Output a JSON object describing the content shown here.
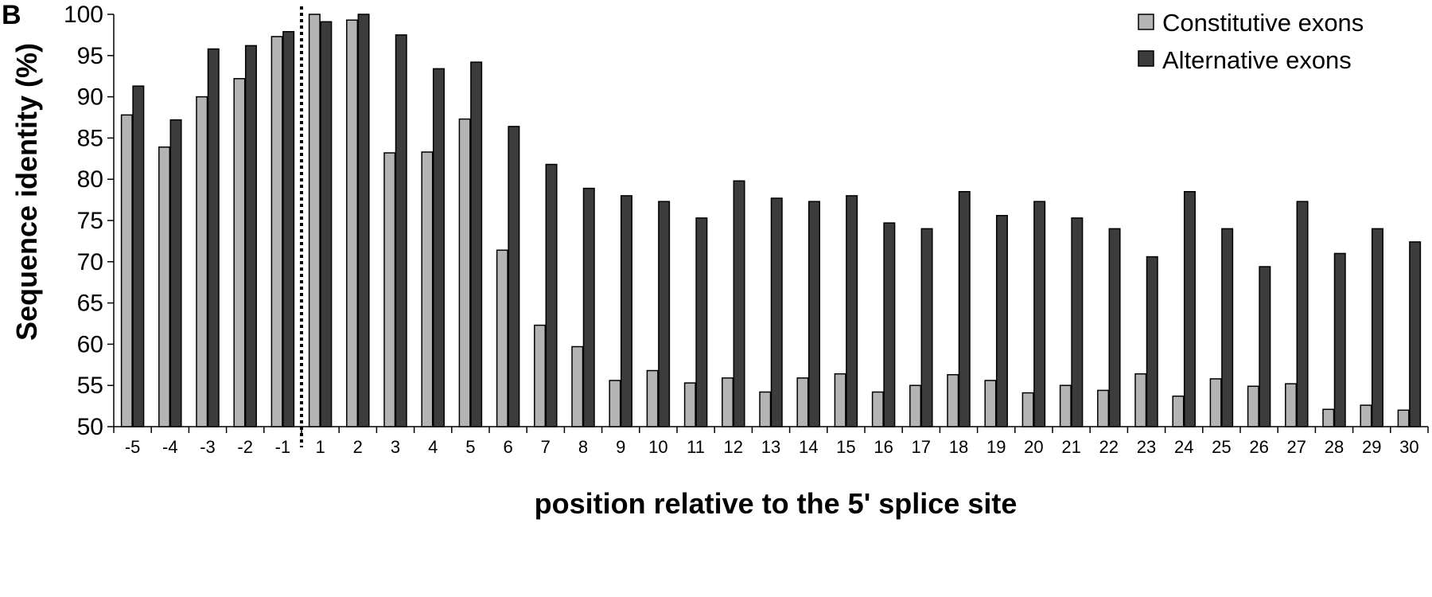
{
  "panel_label": "B",
  "chart_data": {
    "type": "bar",
    "xlabel": "position relative to the 5' splice site",
    "ylabel": "Sequence identity (%)",
    "ylim": [
      50,
      100
    ],
    "yticks": [
      50,
      55,
      60,
      65,
      70,
      75,
      80,
      85,
      90,
      95,
      100
    ],
    "grid": false,
    "legend_position": "top-right",
    "categories": [
      "-5",
      "-4",
      "-3",
      "-2",
      "-1",
      "1",
      "2",
      "3",
      "4",
      "5",
      "6",
      "7",
      "8",
      "9",
      "10",
      "11",
      "12",
      "13",
      "14",
      "15",
      "16",
      "17",
      "18",
      "19",
      "20",
      "21",
      "22",
      "23",
      "24",
      "25",
      "26",
      "27",
      "28",
      "29",
      "30"
    ],
    "series": [
      {
        "name": "Constitutive exons",
        "color": "#b4b4b4",
        "values": [
          87.8,
          83.9,
          90.0,
          92.2,
          97.3,
          100.0,
          99.3,
          83.2,
          83.3,
          87.3,
          71.4,
          62.3,
          59.7,
          55.6,
          56.8,
          55.3,
          55.9,
          54.2,
          55.9,
          56.4,
          54.2,
          55.0,
          56.3,
          55.6,
          54.1,
          55.0,
          54.4,
          56.4,
          53.7,
          55.8,
          54.9,
          55.2,
          52.1,
          52.6,
          52.0
        ]
      },
      {
        "name": "Alternative exons",
        "color": "#3c3c3c",
        "values": [
          91.3,
          87.2,
          95.8,
          96.2,
          97.9,
          99.1,
          100.0,
          97.5,
          93.4,
          94.2,
          86.4,
          81.8,
          78.9,
          78.0,
          77.3,
          75.3,
          79.8,
          77.7,
          77.3,
          78.0,
          74.7,
          74.0,
          78.5,
          75.6,
          77.3,
          75.3,
          74.0,
          70.6,
          78.5,
          74.0,
          69.4,
          77.3,
          71.0,
          74.0,
          72.4
        ]
      }
    ],
    "divider_after_category": "-1"
  }
}
